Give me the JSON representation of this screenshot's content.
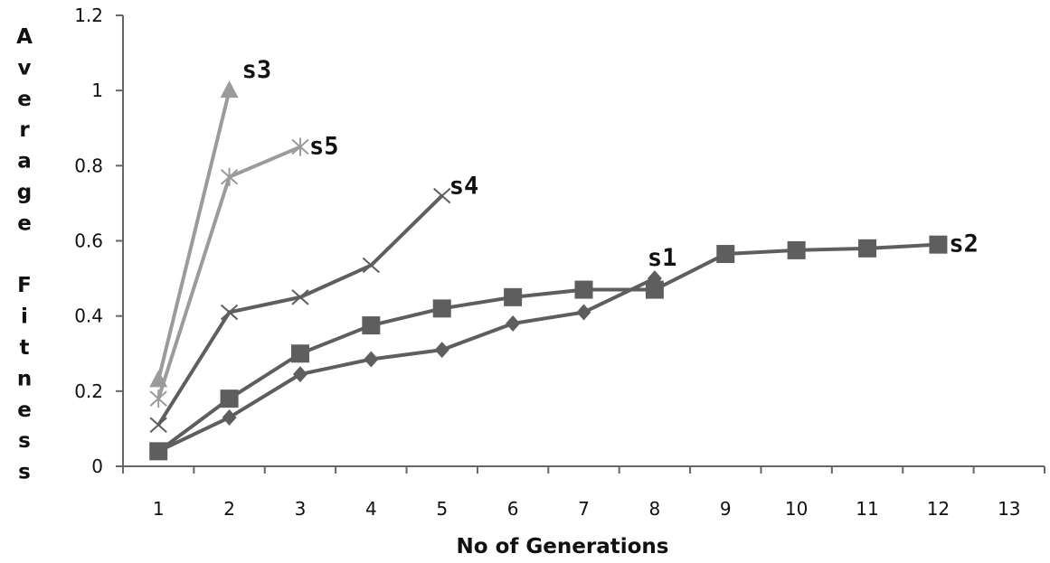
{
  "chart_data": {
    "type": "line",
    "title": "",
    "xlabel": "No of Generations",
    "ylabel": "Average Fitness",
    "ylabel_letters": [
      "A",
      "v",
      "e",
      "r",
      "a",
      "g",
      "e",
      "",
      "F",
      "i",
      "t",
      "n",
      "e",
      "s",
      "s"
    ],
    "x_ticks": [
      1,
      2,
      3,
      4,
      5,
      6,
      7,
      8,
      9,
      10,
      11,
      12,
      13
    ],
    "y_ticks": [
      "0",
      "0.2",
      "0.4",
      "0.6",
      "0.8",
      "1",
      "1.2"
    ],
    "xlim": [
      0.5,
      13.5
    ],
    "ylim": [
      0,
      1.2
    ],
    "grid": false,
    "legend": "none",
    "series": [
      {
        "name": "s1",
        "color": "#5e5e5e",
        "marker": "diamond",
        "x": [
          1,
          2,
          3,
          4,
          5,
          6,
          7,
          8
        ],
        "y": [
          0.04,
          0.13,
          0.245,
          0.285,
          0.31,
          0.38,
          0.41,
          0.5
        ]
      },
      {
        "name": "s2",
        "color": "#5e5e5e",
        "marker": "square",
        "x": [
          1,
          2,
          3,
          4,
          5,
          6,
          7,
          8,
          9,
          10,
          11,
          12
        ],
        "y": [
          0.04,
          0.18,
          0.3,
          0.375,
          0.42,
          0.45,
          0.47,
          0.47,
          0.565,
          0.575,
          0.58,
          0.59
        ]
      },
      {
        "name": "s3",
        "color": "#9b9b9b",
        "marker": "triangle",
        "x": [
          1,
          2
        ],
        "y": [
          0.23,
          1.0
        ]
      },
      {
        "name": "s4",
        "color": "#5e5e5e",
        "marker": "x",
        "x": [
          1,
          2,
          3,
          4,
          5
        ],
        "y": [
          0.11,
          0.41,
          0.45,
          0.535,
          0.72
        ]
      },
      {
        "name": "s5",
        "color": "#9b9b9b",
        "marker": "star",
        "x": [
          1,
          2,
          3
        ],
        "y": [
          0.18,
          0.77,
          0.85
        ]
      }
    ]
  }
}
